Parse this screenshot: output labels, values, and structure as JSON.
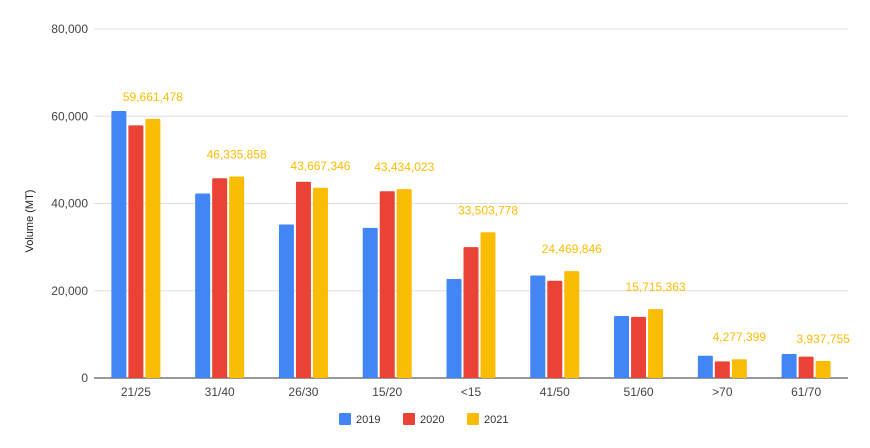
{
  "chart_data": {
    "type": "bar",
    "title": "",
    "xlabel": "",
    "ylabel": "Volume (MT)",
    "ylim": [
      0,
      80000
    ],
    "yticks": [
      0,
      20000,
      40000,
      60000,
      80000
    ],
    "ytick_labels": [
      "0",
      "20,000",
      "40,000",
      "60,000",
      "80,000"
    ],
    "grid": true,
    "legend_position": "bottom",
    "categories": [
      "21/25",
      "31/40",
      "26/30",
      "15/20",
      "<15",
      "41/50",
      "51/60",
      ">70",
      "61/70"
    ],
    "series": [
      {
        "name": "2019",
        "color": "#4285F4",
        "values": [
          61200,
          42300,
          35200,
          34400,
          22700,
          23500,
          14200,
          5100,
          5500
        ]
      },
      {
        "name": "2020",
        "color": "#EA4335",
        "values": [
          57900,
          45800,
          45000,
          42800,
          30000,
          22300,
          14000,
          3800,
          4900
        ]
      },
      {
        "name": "2021",
        "color": "#FBBC04",
        "values": [
          59400,
          46200,
          43600,
          43300,
          33400,
          24500,
          15800,
          4300,
          3900
        ]
      }
    ],
    "data_labels": {
      "series": "2021",
      "color": "#FBBC04",
      "texts": [
        "59,661,478",
        "46,335,858",
        "43,667,346",
        "43,434,023",
        "33,503,778",
        "24,469,846",
        "15,715,363",
        "4,277,399",
        "3,937,755"
      ]
    }
  }
}
